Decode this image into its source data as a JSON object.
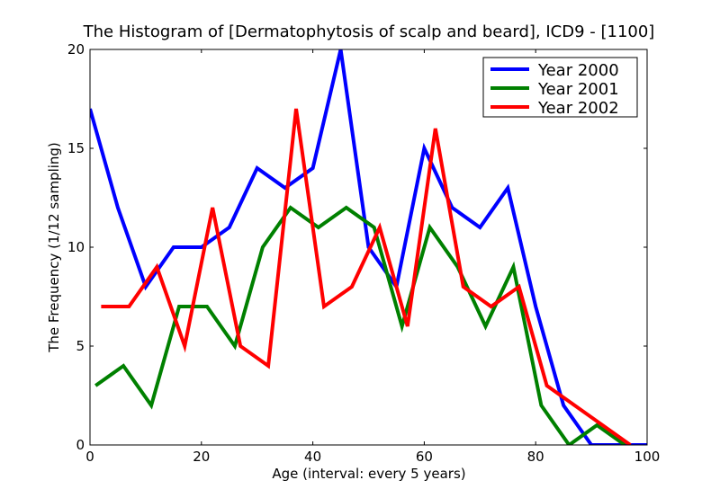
{
  "chart_data": {
    "type": "line",
    "title": "The Histogram of [Dermatophytosis of scalp and beard], ICD9 - [1100]",
    "xlabel": "Age (interval: every 5 years)",
    "ylabel": "The Frequency (1/12 sampling)",
    "xlim": [
      0,
      100
    ],
    "ylim": [
      0,
      20
    ],
    "xticks": [
      0,
      20,
      40,
      60,
      80,
      100
    ],
    "yticks": [
      0,
      5,
      10,
      15,
      20
    ],
    "grid": false,
    "legend_position": "top-right",
    "series": [
      {
        "name": "Year 2000",
        "color": "#0000ff",
        "x": [
          0,
          5,
          10,
          15,
          20,
          25,
          30,
          35,
          40,
          45,
          50,
          55,
          60,
          65,
          70,
          75,
          80,
          85,
          90,
          95,
          100
        ],
        "y": [
          17,
          12,
          8,
          10,
          10,
          11,
          14,
          13,
          14,
          20,
          10,
          8,
          15,
          12,
          11,
          13,
          7,
          2,
          0,
          0,
          0
        ]
      },
      {
        "name": "Year 2001",
        "color": "#008000",
        "x": [
          1,
          6,
          11,
          16,
          21,
          26,
          31,
          36,
          41,
          46,
          51,
          56,
          61,
          66,
          71,
          76,
          81,
          86,
          91,
          96
        ],
        "y": [
          3,
          4,
          2,
          7,
          7,
          5,
          10,
          12,
          11,
          12,
          11,
          6,
          11,
          9,
          6,
          9,
          2,
          0,
          1,
          0
        ]
      },
      {
        "name": "Year 2002",
        "color": "#ff0000",
        "x": [
          2,
          7,
          12,
          17,
          22,
          27,
          32,
          37,
          42,
          47,
          52,
          57,
          62,
          67,
          72,
          77,
          82,
          87,
          92,
          97
        ],
        "y": [
          7,
          7,
          9,
          5,
          12,
          5,
          4,
          17,
          7,
          8,
          11,
          6,
          16,
          8,
          7,
          8,
          3,
          2,
          1,
          0
        ]
      }
    ]
  }
}
